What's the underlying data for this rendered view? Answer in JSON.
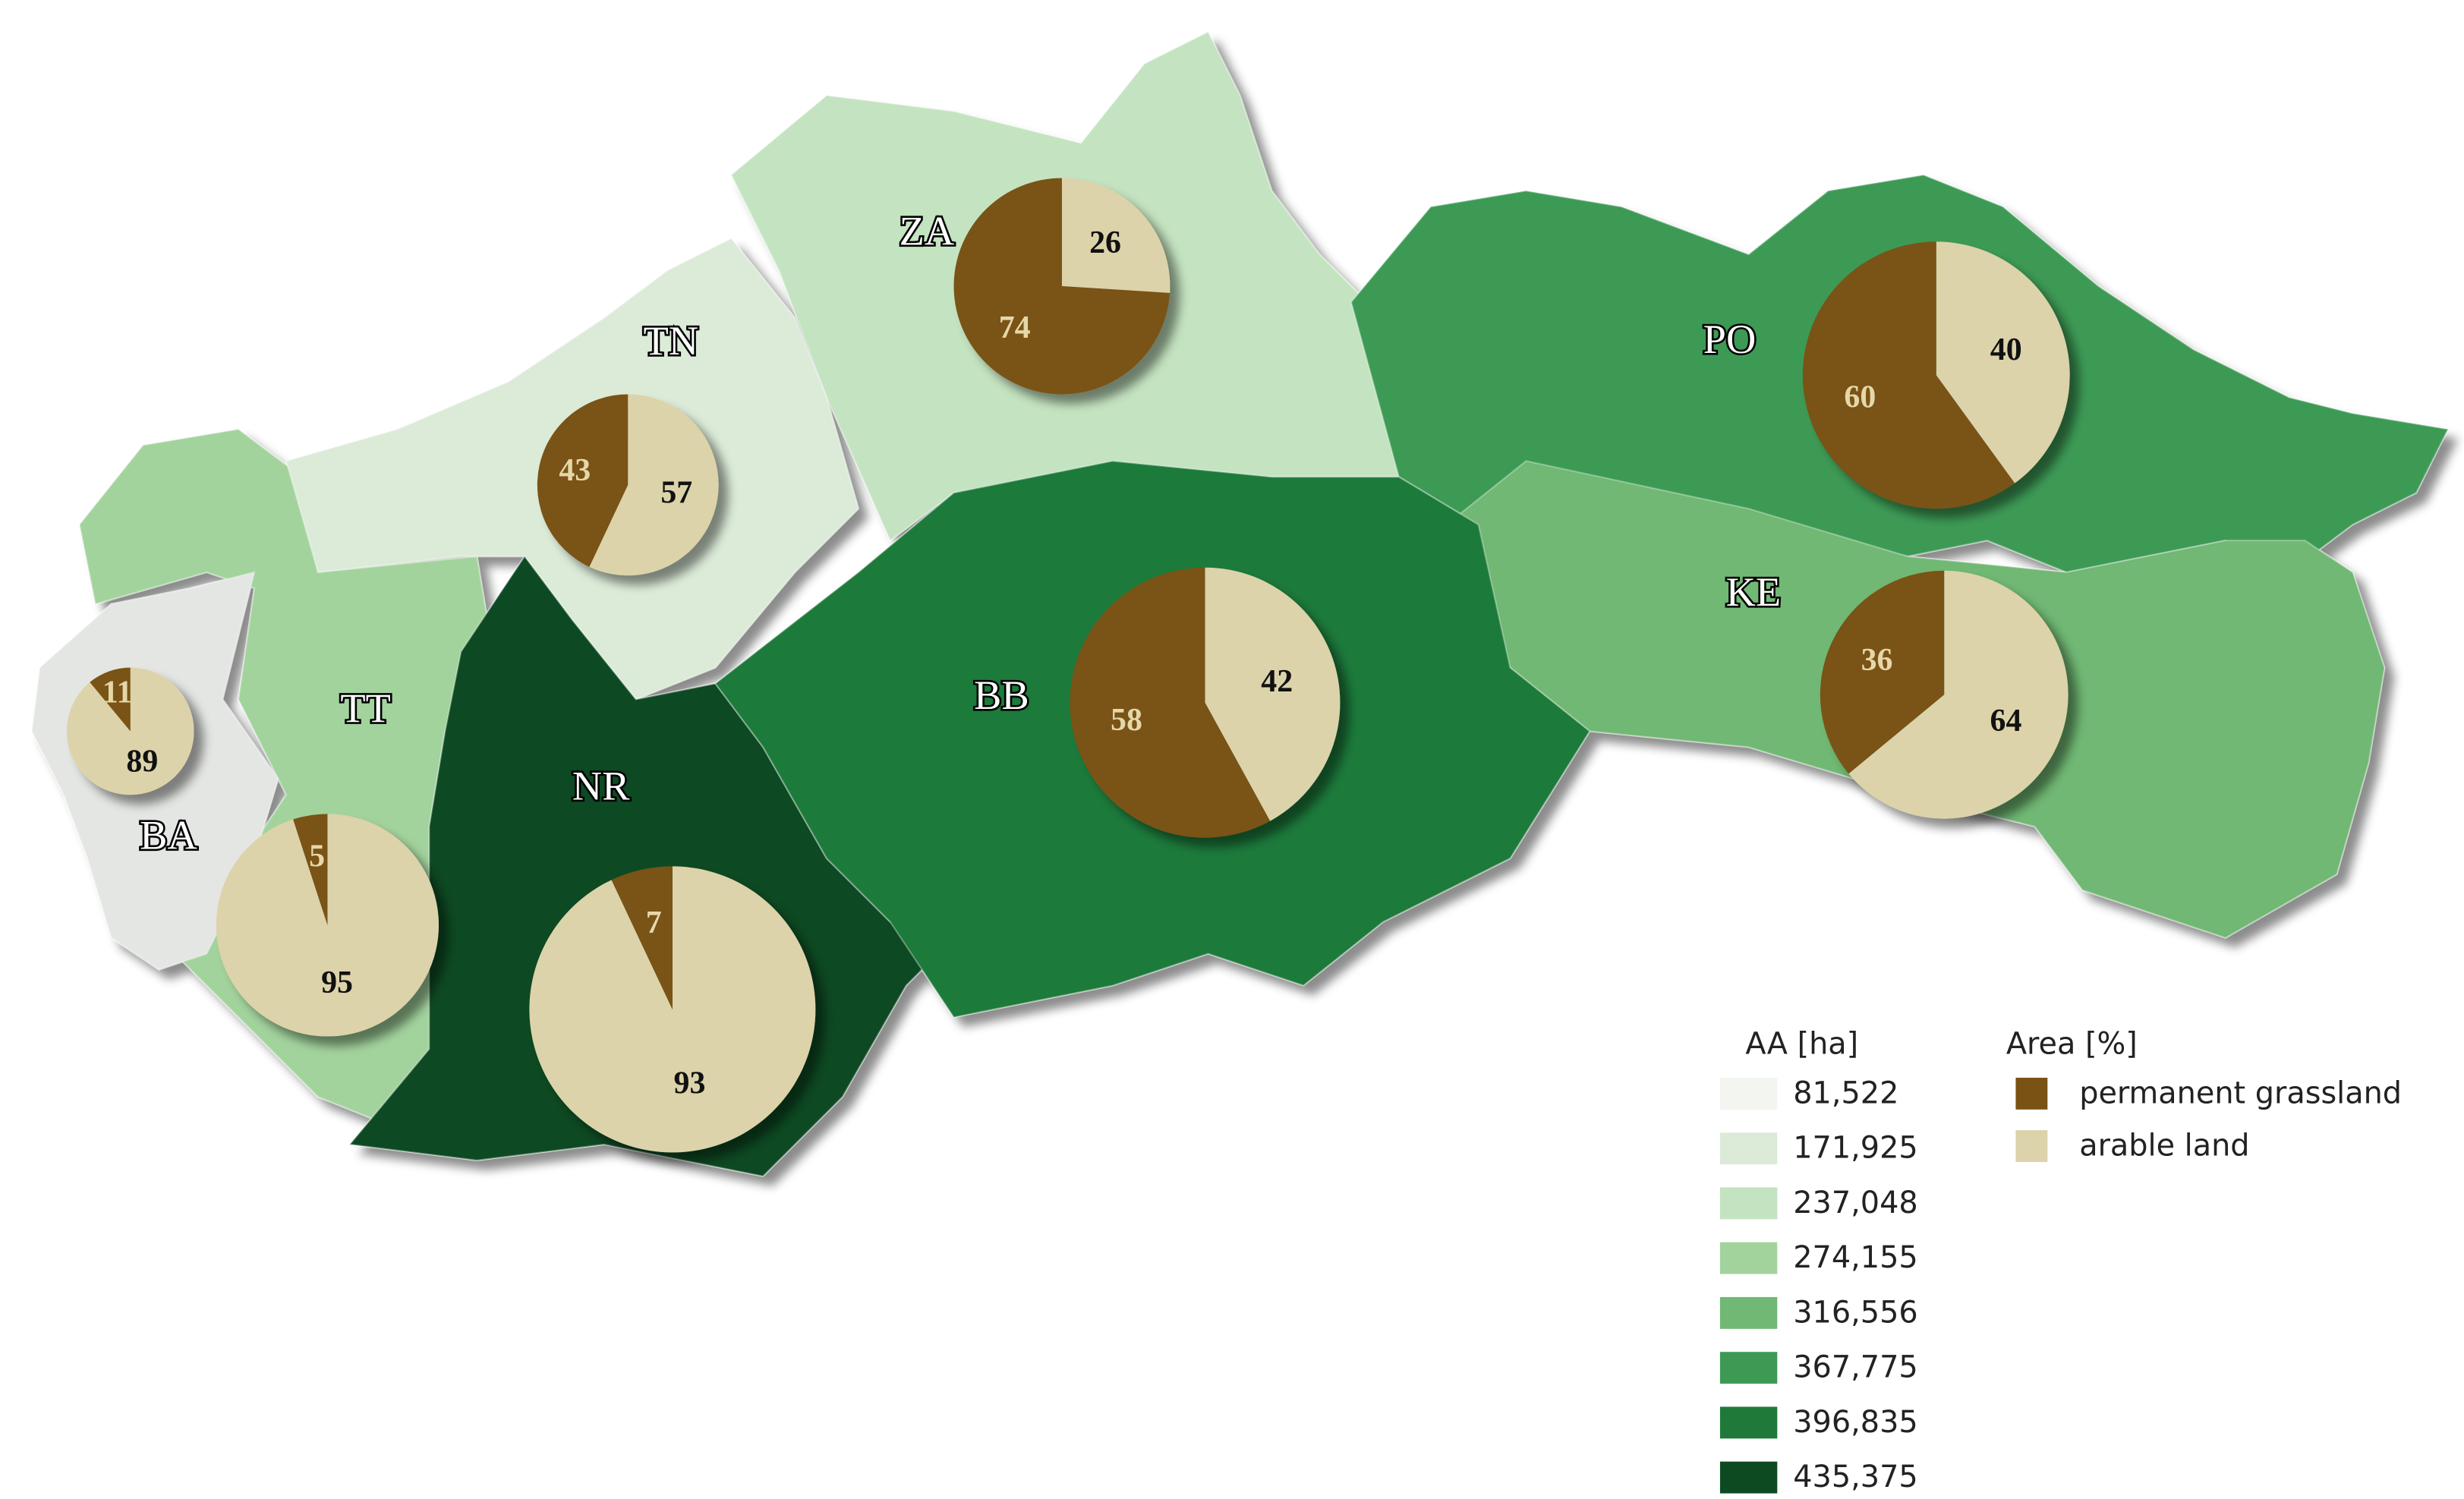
{
  "regions": [
    {
      "label": "BA",
      "color": "#e4e6e3",
      "grassland": 11,
      "arable": 89
    },
    {
      "label": "TT",
      "color": "#a3d39d",
      "grassland": 5,
      "arable": 95
    },
    {
      "label": "TN",
      "color": "#dcebd8",
      "grassland": 43,
      "arable": 57
    },
    {
      "label": "ZA",
      "color": "#c4e3c0",
      "grassland": 74,
      "arable": 26
    },
    {
      "label": "NR",
      "color": "#0d4a22",
      "grassland": 7,
      "arable": 93
    },
    {
      "label": "BB",
      "color": "#1f7a3a",
      "grassland": 58,
      "arable": 42
    },
    {
      "label": "PO",
      "color": "#3d9a55",
      "grassland": 60,
      "arable": 40
    },
    {
      "label": "KE",
      "color": "#70b873",
      "grassland": 36,
      "arable": 64
    }
  ],
  "legend_aa": {
    "title": "AA [ha]",
    "items": [
      {
        "label": "81,522",
        "color": "#f2f5f0"
      },
      {
        "label": "171,925",
        "color": "#dcebd8"
      },
      {
        "label": "237,048",
        "color": "#c4e3c0"
      },
      {
        "label": "274,155",
        "color": "#a3d39d"
      },
      {
        "label": "316,556",
        "color": "#70b873"
      },
      {
        "label": "367,775",
        "color": "#3d9a55"
      },
      {
        "label": "396,835",
        "color": "#1f7a3a"
      },
      {
        "label": "435,375",
        "color": "#0d4a22"
      }
    ]
  },
  "legend_area": {
    "title": "Area [%]",
    "items": [
      {
        "label": "permanent grassland",
        "color": "#7a5214"
      },
      {
        "label": "arable land",
        "color": "#dcd3aa"
      }
    ]
  }
}
